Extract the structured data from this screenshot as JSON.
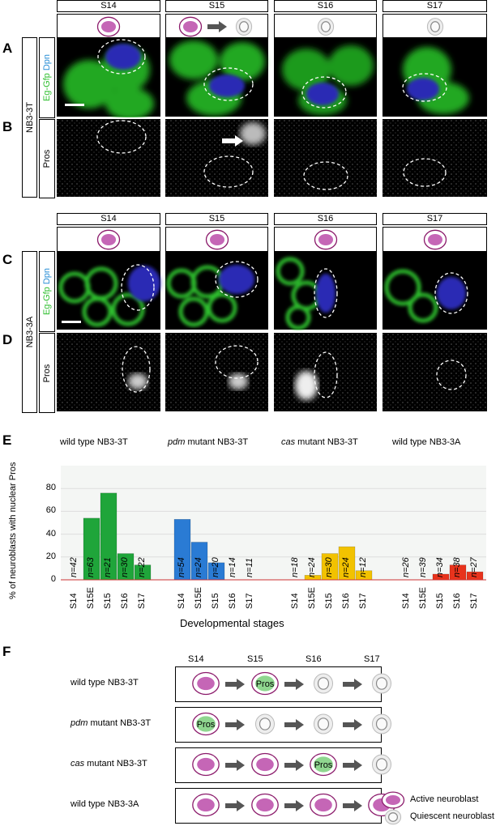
{
  "panel_letters": {
    "a": "A",
    "b": "B",
    "c": "C",
    "d": "D",
    "e": "E",
    "f": "F"
  },
  "top": {
    "stages": [
      "S14",
      "S15",
      "S16",
      "S17"
    ],
    "row_label": "NB3-3T",
    "label_a_green": "Eg-Gfp",
    "label_a_blue": "Dpn",
    "label_b": "Pros"
  },
  "mid": {
    "stages": [
      "S14",
      "S15",
      "S16",
      "S17"
    ],
    "row_label": "NB3-3A",
    "label_c_green": "Eg-Gfp",
    "label_c_blue": "Dpn",
    "label_d": "Pros"
  },
  "chart_data": {
    "type": "bar",
    "ylabel": "% of neuroblasts with nuclear Pros",
    "xlabel": "Developmental stages",
    "ylim": [
      0,
      100
    ],
    "yticks": [
      0,
      20,
      40,
      60,
      80
    ],
    "groups": [
      {
        "title_pre": "wild type",
        "title_ital": "",
        "title_post": " NB3-3T",
        "color": "#1fa53a",
        "categories": [
          "S14",
          "S15E",
          "S15",
          "S16",
          "S17"
        ],
        "values": [
          0,
          54,
          76,
          23,
          13
        ],
        "n": [
          "n=42",
          "n=63",
          "n=21",
          "n=30",
          "n=22"
        ]
      },
      {
        "title_pre": "",
        "title_ital": "pdm",
        "title_post": " mutant NB3-3T",
        "color": "#2a7bd4",
        "categories": [
          "S14",
          "S15E",
          "S15",
          "S16",
          "S17"
        ],
        "values": [
          53,
          33,
          15,
          0,
          0
        ],
        "n": [
          "n=54",
          "n=24",
          "n=20",
          "n=14",
          "n=11"
        ]
      },
      {
        "title_pre": "",
        "title_ital": "cas",
        "title_post": " mutant NB3-3T",
        "color": "#f2c200",
        "categories": [
          "S14",
          "S15E",
          "S15",
          "S16",
          "S17"
        ],
        "values": [
          0,
          4,
          23,
          29,
          8
        ],
        "n": [
          "n=18",
          "n=24",
          "n=30",
          "n=24",
          "n=12"
        ]
      },
      {
        "title_pre": "wild type",
        "title_ital": "",
        "title_post": " NB3-3A",
        "color": "#e8331c",
        "categories": [
          "S14",
          "S15E",
          "S15",
          "S16",
          "S17"
        ],
        "values": [
          0,
          0,
          5,
          13,
          7
        ],
        "n": [
          "n=26",
          "n=39",
          "n=34",
          "n=38",
          "n=27"
        ]
      }
    ]
  },
  "schematic": {
    "stages": [
      "S14",
      "S15",
      "S16",
      "S17"
    ],
    "rows": [
      {
        "pre": "wild type",
        "ital": "",
        "post": " NB3-3T",
        "cells": [
          "active",
          "pros",
          "quiescent",
          "quiescent"
        ],
        "border_after": [
          false,
          true,
          false,
          false
        ]
      },
      {
        "pre": "",
        "ital": "pdm",
        "post": " mutant NB3-3T",
        "cells": [
          "pros",
          "quiescent",
          "quiescent",
          "quiescent"
        ],
        "border_after": [
          true,
          false,
          false,
          false
        ]
      },
      {
        "pre": "",
        "ital": "cas",
        "post": " mutant NB3-3T",
        "cells": [
          "active",
          "active",
          "pros",
          "quiescent"
        ],
        "border_after": [
          true,
          true,
          true,
          false
        ]
      },
      {
        "pre": "wild type",
        "ital": "",
        "post": " NB3-3A",
        "cells": [
          "active",
          "active",
          "active",
          "active"
        ],
        "border_after": [
          true,
          true,
          true,
          true
        ]
      }
    ],
    "pros_label": "Pros",
    "legend": {
      "active": "Active neuroblast",
      "quiescent": "Quiescent neuroblast"
    }
  },
  "colors": {
    "gfp": "#2fbf2f",
    "dpn": "#2b2bd6",
    "magenta": "#8b1a6b",
    "cell_fill": "#c566b6"
  }
}
